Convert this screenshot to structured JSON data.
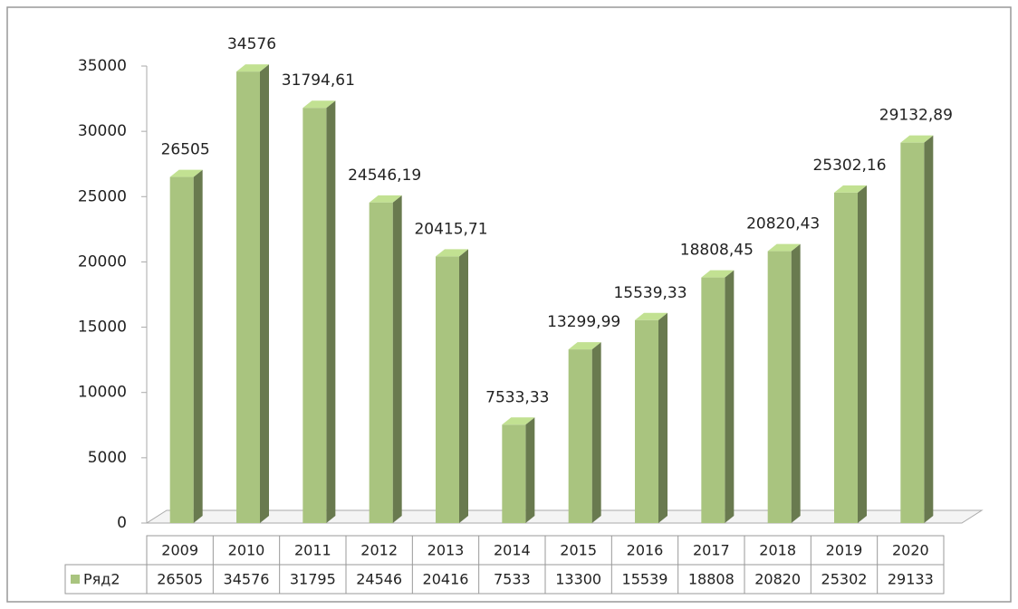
{
  "chart_data": {
    "type": "bar",
    "categories": [
      "2009",
      "2010",
      "2011",
      "2012",
      "2013",
      "2014",
      "2015",
      "2016",
      "2017",
      "2018",
      "2019",
      "2020"
    ],
    "series": [
      {
        "name": "Ряд2",
        "color": "#a9c47f",
        "values": [
          26505,
          34576,
          31794.61,
          24546.19,
          20415.71,
          7533.33,
          13299.99,
          15539.33,
          18808.45,
          20820.43,
          25302.16,
          29132.89
        ],
        "value_labels": [
          "26505",
          "34576",
          "31794,61",
          "24546,19",
          "20415,71",
          "7533,33",
          "13299,99",
          "15539,33",
          "18808,45",
          "20820,43",
          "25302,16",
          "29132,89"
        ],
        "table_labels": [
          "26505",
          "34576",
          "31795",
          "24546",
          "20416",
          "7533",
          "13300",
          "15539",
          "18808",
          "20820",
          "25302",
          "29133"
        ]
      }
    ],
    "ylim": [
      0,
      35000
    ],
    "yticks": [
      0,
      5000,
      10000,
      15000,
      20000,
      25000,
      30000,
      35000
    ],
    "grid": false
  }
}
